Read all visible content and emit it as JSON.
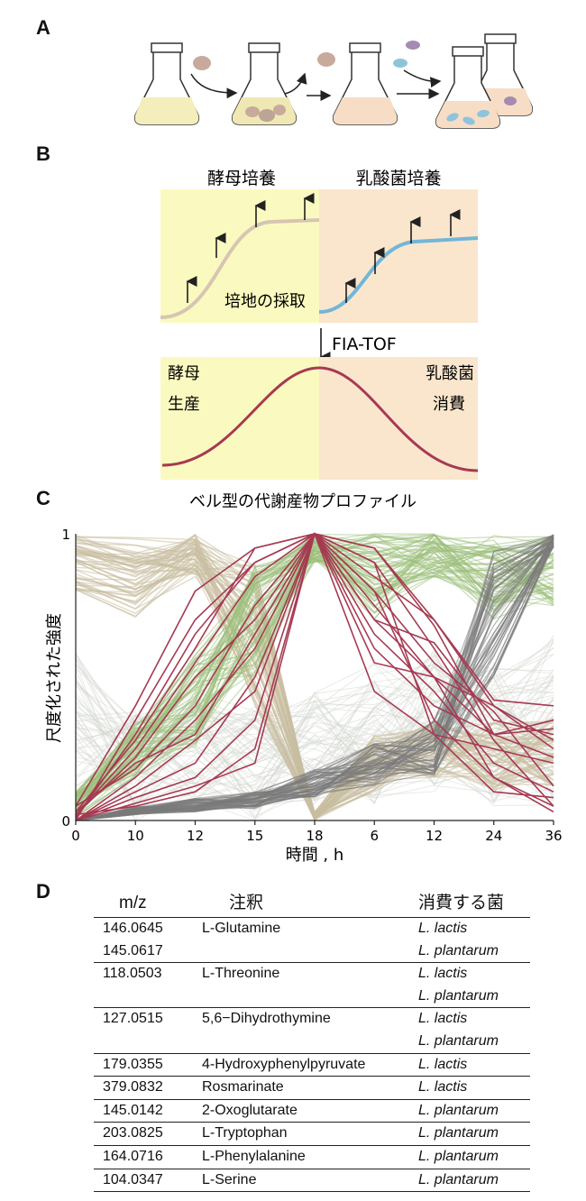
{
  "panels": {
    "a": "A",
    "b": "B",
    "c": "C",
    "d": "D"
  },
  "panel_b": {
    "yeast_culture": "酵母培養",
    "lab_culture": "乳酸菌培養",
    "sampling": "培地の採取",
    "method": "FIA-TOF",
    "yeast": "酵母",
    "production": "生産",
    "lab": "乳酸菌",
    "consumption": "消費",
    "bell_caption": "ベル型の代謝産物プロファイル"
  },
  "chart_data": {
    "type": "line",
    "title": "",
    "xlabel": "時間 , h",
    "ylabel": "尺度化された強度",
    "x_ticks": [
      "0",
      "10",
      "12",
      "15",
      "18",
      "6",
      "12",
      "24",
      "36"
    ],
    "y_ticks": [
      "0",
      "1"
    ],
    "ylim": [
      0,
      1
    ],
    "colors": {
      "yeast": "#c8bea0",
      "green": "#9cbf7a",
      "gray": "#7a7a7a",
      "red": "#a63a52",
      "light": "#d4d8cf"
    },
    "series": [
      {
        "values": [
          0.02,
          0.25,
          0.55,
          0.85,
          1.0,
          0.45,
          0.3,
          0.25,
          0.2
        ]
      },
      {
        "values": [
          0.0,
          0.35,
          0.7,
          0.9,
          1.0,
          0.8,
          0.55,
          0.38,
          0.12
        ]
      },
      {
        "values": [
          0.05,
          0.4,
          0.8,
          0.95,
          1.0,
          0.95,
          0.7,
          0.4,
          0.25
        ]
      },
      {
        "values": [
          0.03,
          0.2,
          0.3,
          0.65,
          1.0,
          0.9,
          0.6,
          0.28,
          0.05
        ]
      },
      {
        "values": [
          0.0,
          0.12,
          0.28,
          0.45,
          1.0,
          0.7,
          0.62,
          0.35,
          0.3
        ]
      },
      {
        "values": [
          0.02,
          0.05,
          0.1,
          0.25,
          1.0,
          0.6,
          0.4,
          0.3,
          0.32
        ]
      },
      {
        "values": [
          0.0,
          0.1,
          0.2,
          0.5,
          1.0,
          0.75,
          0.5,
          0.15,
          0.03
        ]
      },
      {
        "values": [
          0.01,
          0.3,
          0.65,
          0.9,
          1.0,
          0.85,
          0.7,
          0.42,
          0.4
        ]
      },
      {
        "values": [
          0.05,
          0.18,
          0.4,
          0.75,
          1.0,
          0.55,
          0.5,
          0.3,
          0.22
        ]
      },
      {
        "values": [
          0.0,
          0.08,
          0.15,
          0.35,
          1.0,
          0.9,
          0.3,
          0.1,
          0.08
        ]
      },
      {
        "values": [
          0.02,
          0.22,
          0.5,
          0.7,
          1.0,
          0.65,
          0.45,
          0.2,
          0.1
        ]
      },
      {
        "values": [
          0.0,
          0.15,
          0.35,
          0.6,
          1.0,
          0.8,
          0.35,
          0.15,
          0.05
        ]
      },
      {
        "values": [
          0.03,
          0.28,
          0.6,
          0.95,
          1.0,
          0.7,
          0.5,
          0.4,
          0.28
        ]
      },
      {
        "values": [
          0.0,
          0.06,
          0.12,
          0.2,
          1.0,
          0.95,
          0.68,
          0.3,
          0.35
        ]
      }
    ]
  },
  "table": {
    "headers": [
      "m/z",
      "注釈",
      "消費する菌"
    ],
    "rows": [
      {
        "mz": "146.0645",
        "annotation": "L-Glutamine",
        "species": "L. lactis",
        "group_start": true
      },
      {
        "mz": "145.0617",
        "annotation": "",
        "species": "L. plantarum",
        "group_start": false
      },
      {
        "mz": "118.0503",
        "annotation": "L-Threonine",
        "species": "L. lactis",
        "group_start": true
      },
      {
        "mz": "",
        "annotation": "",
        "species": "L. plantarum",
        "group_start": false
      },
      {
        "mz": "127.0515",
        "annotation": "5,6−Dihydrothymine",
        "species": "L. lactis",
        "group_start": true
      },
      {
        "mz": "",
        "annotation": "",
        "species": "L. plantarum",
        "group_start": false
      },
      {
        "mz": "179.0355",
        "annotation": "4-Hydroxyphenylpyruvate",
        "species": "L. lactis",
        "group_start": true
      },
      {
        "mz": "379.0832",
        "annotation": "Rosmarinate",
        "species": "L. lactis",
        "group_start": true
      },
      {
        "mz": "145.0142",
        "annotation": "2-Oxoglutarate",
        "species": "L. plantarum",
        "group_start": true
      },
      {
        "mz": "203.0825",
        "annotation": "L-Tryptophan",
        "species": "L. plantarum",
        "group_start": true
      },
      {
        "mz": "164.0716",
        "annotation": "L-Phenylalanine",
        "species": "L. plantarum",
        "group_start": true
      },
      {
        "mz": "104.0347",
        "annotation": "L-Serine",
        "species": "L. plantarum",
        "group_start": true
      }
    ]
  }
}
